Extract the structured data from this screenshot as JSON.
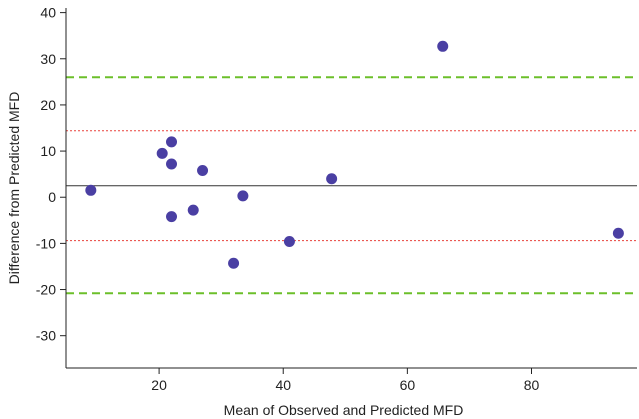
{
  "chart_data": {
    "type": "scatter",
    "xlabel": "Mean of Observed and Predicted MFD",
    "ylabel": "Difference from Predicted MFD",
    "xlim": [
      5,
      97
    ],
    "ylim": [
      -37,
      41
    ],
    "x_ticks": [
      20,
      40,
      60,
      80
    ],
    "y_ticks": [
      40,
      30,
      20,
      10,
      0,
      -10,
      -20,
      -30
    ],
    "grid": false,
    "points": [
      {
        "x": 9,
        "y": 1.5
      },
      {
        "x": 20.5,
        "y": 9.5
      },
      {
        "x": 22,
        "y": 12
      },
      {
        "x": 22,
        "y": 7.2
      },
      {
        "x": 22,
        "y": -4.2
      },
      {
        "x": 25.5,
        "y": -2.8
      },
      {
        "x": 27,
        "y": 5.8
      },
      {
        "x": 32,
        "y": -14.3
      },
      {
        "x": 33.5,
        "y": 0.3
      },
      {
        "x": 41,
        "y": -9.6
      },
      {
        "x": 47.8,
        "y": 4
      },
      {
        "x": 65.7,
        "y": 32.7
      },
      {
        "x": 94,
        "y": -7.8
      }
    ],
    "reference_lines": [
      {
        "kind": "mean",
        "y": 2.5,
        "color": "#333333",
        "style": "solid"
      },
      {
        "kind": "upper-inner",
        "y": 14.4,
        "color": "#e8413a",
        "style": "dotted"
      },
      {
        "kind": "lower-inner",
        "y": -9.4,
        "color": "#e8413a",
        "style": "dotted"
      },
      {
        "kind": "upper-outer",
        "y": 26,
        "color": "#6cbf2a",
        "style": "dashed"
      },
      {
        "kind": "lower-outer",
        "y": -20.8,
        "color": "#6cbf2a",
        "style": "dashed"
      }
    ],
    "point_color": "#4a3fa3"
  }
}
